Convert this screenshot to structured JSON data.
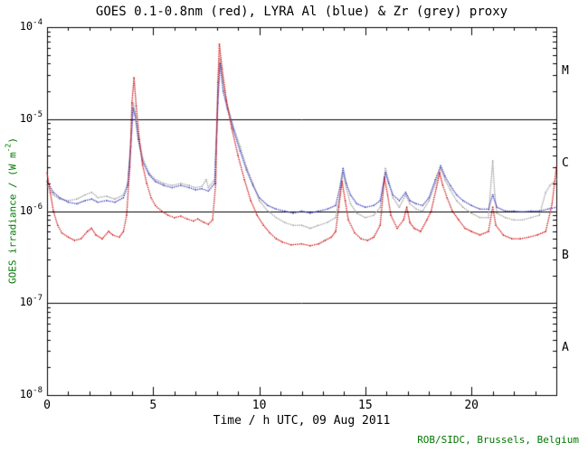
{
  "credit": "ROB/SIDC, Brussels, Belgium",
  "colors": {
    "red_series": "#cc0000",
    "blue_series": "#3333bb",
    "grey_series": "#999999",
    "axis": "#000000",
    "annotation_green": "#007700"
  },
  "chart_data": {
    "type": "line",
    "style": "dotted",
    "title": "GOES 0.1-0.8nm (red), LYRA Al (blue) & Zr (grey) proxy",
    "x_axis": {
      "label": "Time / h UTC, 09 Aug 2011",
      "min": 0,
      "max": 24,
      "major_ticks": [
        0,
        5,
        10,
        15,
        20
      ],
      "minor_step": 1
    },
    "y_axis": {
      "label": "GOES irradiance / (W m-2)",
      "label_prefix": "GOES irradiance / (W m",
      "label_sup": "-2",
      "label_suffix": ")",
      "scale": "log",
      "min": 1e-08,
      "max": 0.0001,
      "tick_exponents": [
        -8,
        -7,
        -6,
        -5,
        -4
      ]
    },
    "class_boundaries": [
      1e-07,
      1e-06,
      1e-05
    ],
    "class_labels": [
      {
        "label": "A",
        "value": 3.2e-08
      },
      {
        "label": "B",
        "value": 3.2e-07
      },
      {
        "label": "C",
        "value": 3.2e-06
      },
      {
        "label": "M",
        "value": 3.2e-05
      }
    ],
    "series": [
      {
        "name": "GOES 0.1-0.8nm",
        "color": "#cc0000",
        "points": [
          [
            0.0,
            2.6e-06
          ],
          [
            0.15,
            1.6e-06
          ],
          [
            0.3,
            1e-06
          ],
          [
            0.5,
            7e-07
          ],
          [
            0.7,
            5.8e-07
          ],
          [
            1.0,
            5.2e-07
          ],
          [
            1.3,
            4.8e-07
          ],
          [
            1.6,
            5e-07
          ],
          [
            1.9,
            6e-07
          ],
          [
            2.1,
            6.5e-07
          ],
          [
            2.3,
            5.5e-07
          ],
          [
            2.6,
            5e-07
          ],
          [
            2.9,
            6e-07
          ],
          [
            3.1,
            5.5e-07
          ],
          [
            3.4,
            5.2e-07
          ],
          [
            3.6,
            6e-07
          ],
          [
            3.75,
            9e-07
          ],
          [
            3.9,
            3e-06
          ],
          [
            4.0,
            1.5e-05
          ],
          [
            4.1,
            2.8e-05
          ],
          [
            4.2,
            1.4e-05
          ],
          [
            4.35,
            6e-06
          ],
          [
            4.5,
            3.2e-06
          ],
          [
            4.7,
            2e-06
          ],
          [
            4.9,
            1.4e-06
          ],
          [
            5.1,
            1.15e-06
          ],
          [
            5.4,
            1e-06
          ],
          [
            5.7,
            9e-07
          ],
          [
            6.0,
            8.5e-07
          ],
          [
            6.3,
            8.8e-07
          ],
          [
            6.6,
            8.2e-07
          ],
          [
            6.9,
            7.8e-07
          ],
          [
            7.1,
            8.2e-07
          ],
          [
            7.4,
            7.5e-07
          ],
          [
            7.6,
            7.2e-07
          ],
          [
            7.8,
            8e-07
          ],
          [
            7.95,
            2e-06
          ],
          [
            8.05,
            2.5e-05
          ],
          [
            8.12,
            6.5e-05
          ],
          [
            8.25,
            3.5e-05
          ],
          [
            8.45,
            1.6e-05
          ],
          [
            8.7,
            8e-06
          ],
          [
            9.0,
            4e-06
          ],
          [
            9.3,
            2.2e-06
          ],
          [
            9.6,
            1.3e-06
          ],
          [
            9.9,
            9e-07
          ],
          [
            10.2,
            7e-07
          ],
          [
            10.5,
            5.8e-07
          ],
          [
            10.8,
            5e-07
          ],
          [
            11.1,
            4.6e-07
          ],
          [
            11.5,
            4.3e-07
          ],
          [
            12.0,
            4.4e-07
          ],
          [
            12.4,
            4.2e-07
          ],
          [
            12.8,
            4.4e-07
          ],
          [
            13.1,
            4.8e-07
          ],
          [
            13.4,
            5.2e-07
          ],
          [
            13.6,
            6e-07
          ],
          [
            13.75,
            1.1e-06
          ],
          [
            13.9,
            2.1e-06
          ],
          [
            14.05,
            1.3e-06
          ],
          [
            14.2,
            8e-07
          ],
          [
            14.5,
            5.8e-07
          ],
          [
            14.8,
            5e-07
          ],
          [
            15.1,
            4.8e-07
          ],
          [
            15.4,
            5.2e-07
          ],
          [
            15.7,
            7e-07
          ],
          [
            15.9,
            2.3e-06
          ],
          [
            16.05,
            1.5e-06
          ],
          [
            16.2,
            9e-07
          ],
          [
            16.5,
            6.5e-07
          ],
          [
            16.8,
            8e-07
          ],
          [
            16.95,
            1.1e-06
          ],
          [
            17.1,
            7.5e-07
          ],
          [
            17.3,
            6.5e-07
          ],
          [
            17.6,
            6e-07
          ],
          [
            17.9,
            8e-07
          ],
          [
            18.1,
            1e-06
          ],
          [
            18.35,
            1.8e-06
          ],
          [
            18.5,
            2.6e-06
          ],
          [
            18.65,
            1.9e-06
          ],
          [
            18.85,
            1.4e-06
          ],
          [
            19.1,
            1e-06
          ],
          [
            19.4,
            8e-07
          ],
          [
            19.7,
            6.5e-07
          ],
          [
            20.0,
            6e-07
          ],
          [
            20.4,
            5.5e-07
          ],
          [
            20.8,
            6e-07
          ],
          [
            21.0,
            1.1e-06
          ],
          [
            21.15,
            7e-07
          ],
          [
            21.5,
            5.5e-07
          ],
          [
            21.9,
            5e-07
          ],
          [
            22.3,
            5e-07
          ],
          [
            22.7,
            5.2e-07
          ],
          [
            23.1,
            5.5e-07
          ],
          [
            23.5,
            6e-07
          ],
          [
            23.8,
            1.2e-06
          ],
          [
            24.0,
            3e-06
          ]
        ]
      },
      {
        "name": "LYRA Al",
        "color": "#3333bb",
        "points": [
          [
            0.0,
            2.1e-06
          ],
          [
            0.3,
            1.6e-06
          ],
          [
            0.6,
            1.4e-06
          ],
          [
            1.0,
            1.25e-06
          ],
          [
            1.4,
            1.2e-06
          ],
          [
            1.8,
            1.3e-06
          ],
          [
            2.1,
            1.35e-06
          ],
          [
            2.4,
            1.25e-06
          ],
          [
            2.8,
            1.3e-06
          ],
          [
            3.2,
            1.25e-06
          ],
          [
            3.6,
            1.4e-06
          ],
          [
            3.8,
            1.9e-06
          ],
          [
            3.95,
            5e-06
          ],
          [
            4.05,
            1.3e-05
          ],
          [
            4.15,
            1.1e-05
          ],
          [
            4.3,
            6e-06
          ],
          [
            4.5,
            3.5e-06
          ],
          [
            4.8,
            2.5e-06
          ],
          [
            5.1,
            2.1e-06
          ],
          [
            5.5,
            1.9e-06
          ],
          [
            5.9,
            1.8e-06
          ],
          [
            6.3,
            1.9e-06
          ],
          [
            6.7,
            1.8e-06
          ],
          [
            7.0,
            1.7e-06
          ],
          [
            7.3,
            1.75e-06
          ],
          [
            7.6,
            1.65e-06
          ],
          [
            7.9,
            2e-06
          ],
          [
            8.05,
            1.5e-05
          ],
          [
            8.15,
            4e-05
          ],
          [
            8.3,
            2e-05
          ],
          [
            8.5,
            1.3e-05
          ],
          [
            8.8,
            7.5e-06
          ],
          [
            9.1,
            4.5e-06
          ],
          [
            9.4,
            2.8e-06
          ],
          [
            9.7,
            1.9e-06
          ],
          [
            10.0,
            1.4e-06
          ],
          [
            10.4,
            1.15e-06
          ],
          [
            10.8,
            1.05e-06
          ],
          [
            11.2,
            1e-06
          ],
          [
            11.6,
            9.5e-07
          ],
          [
            12.0,
            1e-06
          ],
          [
            12.4,
            9.5e-07
          ],
          [
            12.8,
            1e-06
          ],
          [
            13.2,
            1.05e-06
          ],
          [
            13.6,
            1.15e-06
          ],
          [
            13.8,
            1.8e-06
          ],
          [
            13.95,
            2.9e-06
          ],
          [
            14.1,
            2e-06
          ],
          [
            14.3,
            1.5e-06
          ],
          [
            14.6,
            1.2e-06
          ],
          [
            15.0,
            1.1e-06
          ],
          [
            15.4,
            1.15e-06
          ],
          [
            15.7,
            1.3e-06
          ],
          [
            15.95,
            2.6e-06
          ],
          [
            16.1,
            2e-06
          ],
          [
            16.3,
            1.5e-06
          ],
          [
            16.6,
            1.3e-06
          ],
          [
            16.9,
            1.6e-06
          ],
          [
            17.1,
            1.3e-06
          ],
          [
            17.4,
            1.2e-06
          ],
          [
            17.7,
            1.15e-06
          ],
          [
            18.0,
            1.4e-06
          ],
          [
            18.3,
            2.2e-06
          ],
          [
            18.55,
            3.1e-06
          ],
          [
            18.75,
            2.4e-06
          ],
          [
            19.0,
            1.9e-06
          ],
          [
            19.3,
            1.5e-06
          ],
          [
            19.6,
            1.3e-06
          ],
          [
            20.0,
            1.15e-06
          ],
          [
            20.4,
            1.05e-06
          ],
          [
            20.8,
            1.05e-06
          ],
          [
            21.0,
            1.5e-06
          ],
          [
            21.2,
            1.1e-06
          ],
          [
            21.6,
            1e-06
          ],
          [
            22.0,
            1e-06
          ],
          [
            22.4,
            9.8e-07
          ],
          [
            22.8,
            1e-06
          ],
          [
            23.2,
            1e-06
          ],
          [
            23.6,
            1.05e-06
          ],
          [
            24.0,
            1.1e-06
          ]
        ]
      },
      {
        "name": "LYRA Zr",
        "color": "#999999",
        "points": [
          [
            0.0,
            1.9e-06
          ],
          [
            0.3,
            1.5e-06
          ],
          [
            0.6,
            1.35e-06
          ],
          [
            1.0,
            1.3e-06
          ],
          [
            1.4,
            1.35e-06
          ],
          [
            1.8,
            1.5e-06
          ],
          [
            2.1,
            1.6e-06
          ],
          [
            2.4,
            1.4e-06
          ],
          [
            2.8,
            1.45e-06
          ],
          [
            3.2,
            1.35e-06
          ],
          [
            3.6,
            1.5e-06
          ],
          [
            3.8,
            2e-06
          ],
          [
            3.95,
            6e-06
          ],
          [
            4.05,
            1.5e-05
          ],
          [
            4.15,
            1.2e-05
          ],
          [
            4.3,
            6.5e-06
          ],
          [
            4.5,
            3.8e-06
          ],
          [
            4.8,
            2.6e-06
          ],
          [
            5.1,
            2.2e-06
          ],
          [
            5.5,
            2e-06
          ],
          [
            5.9,
            1.9e-06
          ],
          [
            6.3,
            2e-06
          ],
          [
            6.7,
            1.9e-06
          ],
          [
            7.0,
            1.8e-06
          ],
          [
            7.3,
            1.85e-06
          ],
          [
            7.5,
            2.2e-06
          ],
          [
            7.6,
            1.8e-06
          ],
          [
            7.9,
            2.2e-06
          ],
          [
            8.05,
            2e-05
          ],
          [
            8.15,
            4.5e-05
          ],
          [
            8.3,
            2.5e-05
          ],
          [
            8.5,
            1.4e-05
          ],
          [
            8.8,
            8e-06
          ],
          [
            9.1,
            5e-06
          ],
          [
            9.4,
            3e-06
          ],
          [
            9.7,
            2e-06
          ],
          [
            10.0,
            1.3e-06
          ],
          [
            10.4,
            1e-06
          ],
          [
            10.8,
            8.5e-07
          ],
          [
            11.2,
            7.5e-07
          ],
          [
            11.6,
            7e-07
          ],
          [
            12.0,
            7e-07
          ],
          [
            12.4,
            6.5e-07
          ],
          [
            12.8,
            7e-07
          ],
          [
            13.2,
            7.5e-07
          ],
          [
            13.6,
            8.5e-07
          ],
          [
            13.8,
            1.5e-06
          ],
          [
            13.95,
            2.6e-06
          ],
          [
            14.1,
            1.8e-06
          ],
          [
            14.3,
            1.2e-06
          ],
          [
            14.6,
            9.5e-07
          ],
          [
            15.0,
            8.5e-07
          ],
          [
            15.4,
            9e-07
          ],
          [
            15.7,
            1.1e-06
          ],
          [
            15.95,
            2.9e-06
          ],
          [
            16.1,
            2.1e-06
          ],
          [
            16.3,
            1.4e-06
          ],
          [
            16.6,
            1.1e-06
          ],
          [
            16.9,
            1.5e-06
          ],
          [
            17.1,
            1.2e-06
          ],
          [
            17.4,
            1.05e-06
          ],
          [
            17.7,
            1e-06
          ],
          [
            18.0,
            1.3e-06
          ],
          [
            18.3,
            2e-06
          ],
          [
            18.55,
            2.9e-06
          ],
          [
            18.75,
            2.2e-06
          ],
          [
            19.0,
            1.7e-06
          ],
          [
            19.3,
            1.3e-06
          ],
          [
            19.6,
            1.1e-06
          ],
          [
            20.0,
            9.5e-07
          ],
          [
            20.4,
            8.5e-07
          ],
          [
            20.8,
            8.5e-07
          ],
          [
            21.0,
            3.5e-06
          ],
          [
            21.1,
            1.5e-06
          ],
          [
            21.2,
            9.5e-07
          ],
          [
            21.6,
            8.5e-07
          ],
          [
            22.0,
            8e-07
          ],
          [
            22.4,
            8e-07
          ],
          [
            22.8,
            8.5e-07
          ],
          [
            23.2,
            9e-07
          ],
          [
            23.5,
            1.6e-06
          ],
          [
            23.7,
            1.9e-06
          ],
          [
            24.0,
            2.2e-06
          ]
        ]
      }
    ]
  }
}
